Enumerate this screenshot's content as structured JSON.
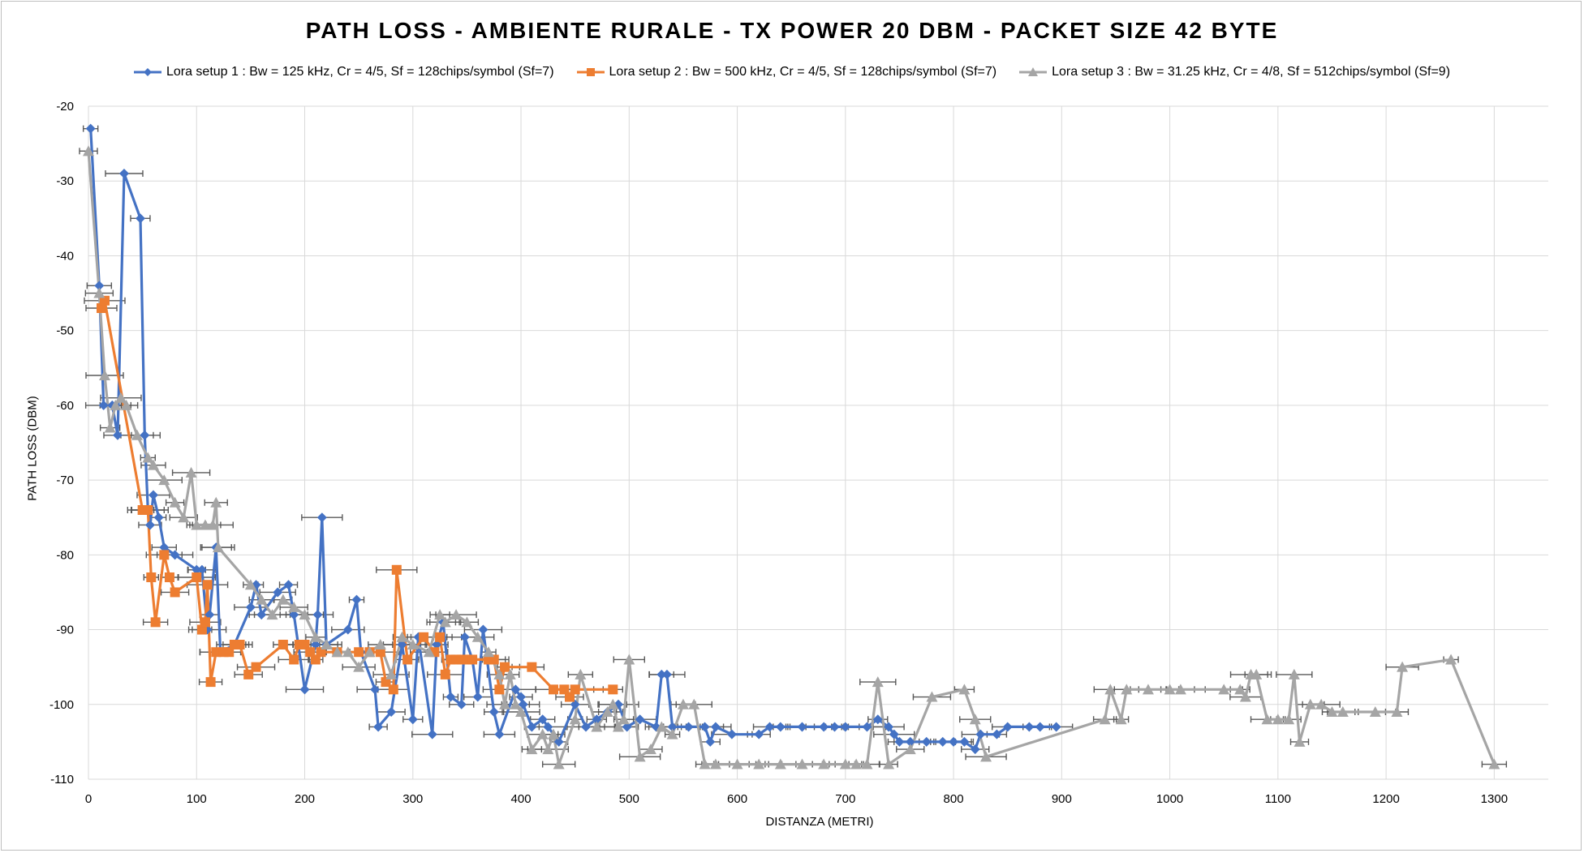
{
  "chart_data": {
    "type": "line",
    "title": "PATH LOSS - AMBIENTE RURALE - TX POWER 20 DBM - PACKET SIZE 42 BYTE",
    "xlabel": "DISTANZA (METRI)",
    "ylabel": "PATH LOSS (DBM)",
    "xlim": [
      0,
      1350
    ],
    "ylim": [
      -110,
      -20
    ],
    "x_ticks": [
      0,
      100,
      200,
      300,
      400,
      500,
      600,
      700,
      800,
      900,
      1000,
      1100,
      1200,
      1300
    ],
    "y_ticks": [
      -20,
      -30,
      -40,
      -50,
      -60,
      -70,
      -80,
      -90,
      -100,
      -110
    ],
    "grid": true,
    "legend_position": "top",
    "error_bars": "horizontal",
    "series": [
      {
        "name": "Lora setup 1 : Bw = 125 kHz, Cr = 4/5, Sf = 128chips/symbol (Sf=7)",
        "color": "#4472C4",
        "marker": "diamond",
        "points": [
          [
            2,
            -23
          ],
          [
            10,
            -44
          ],
          [
            14,
            -60
          ],
          [
            22,
            -60
          ],
          [
            27,
            -64
          ],
          [
            33,
            -29
          ],
          [
            48,
            -35
          ],
          [
            52,
            -64
          ],
          [
            55,
            -74
          ],
          [
            57,
            -76
          ],
          [
            60,
            -72
          ],
          [
            65,
            -75
          ],
          [
            70,
            -79
          ],
          [
            80,
            -80
          ],
          [
            100,
            -82
          ],
          [
            105,
            -82
          ],
          [
            110,
            -90
          ],
          [
            112,
            -88
          ],
          [
            118,
            -79
          ],
          [
            122,
            -93
          ],
          [
            135,
            -92
          ],
          [
            150,
            -87
          ],
          [
            155,
            -84
          ],
          [
            160,
            -88
          ],
          [
            175,
            -85
          ],
          [
            185,
            -84
          ],
          [
            190,
            -88
          ],
          [
            200,
            -98
          ],
          [
            210,
            -92
          ],
          [
            212,
            -88
          ],
          [
            216,
            -75
          ],
          [
            220,
            -92
          ],
          [
            240,
            -90
          ],
          [
            248,
            -86
          ],
          [
            252,
            -93
          ],
          [
            265,
            -98
          ],
          [
            268,
            -103
          ],
          [
            280,
            -101
          ],
          [
            290,
            -92
          ],
          [
            300,
            -102
          ],
          [
            305,
            -91
          ],
          [
            318,
            -104
          ],
          [
            322,
            -92
          ],
          [
            328,
            -89
          ],
          [
            335,
            -99
          ],
          [
            345,
            -100
          ],
          [
            348,
            -91
          ],
          [
            355,
            -94
          ],
          [
            360,
            -99
          ],
          [
            365,
            -90
          ],
          [
            375,
            -101
          ],
          [
            380,
            -104
          ],
          [
            395,
            -98
          ],
          [
            400,
            -99
          ],
          [
            402,
            -100
          ],
          [
            410,
            -103
          ],
          [
            420,
            -102
          ],
          [
            425,
            -103
          ],
          [
            435,
            -105
          ],
          [
            450,
            -100
          ],
          [
            460,
            -103
          ],
          [
            470,
            -102
          ],
          [
            480,
            -101
          ],
          [
            490,
            -100
          ],
          [
            498,
            -103
          ],
          [
            510,
            -102
          ],
          [
            525,
            -103
          ],
          [
            530,
            -96
          ],
          [
            535,
            -96
          ],
          [
            540,
            -103
          ],
          [
            555,
            -103
          ],
          [
            570,
            -103
          ],
          [
            575,
            -105
          ],
          [
            580,
            -103
          ],
          [
            595,
            -104
          ],
          [
            620,
            -104
          ],
          [
            630,
            -103
          ],
          [
            640,
            -103
          ],
          [
            660,
            -103
          ],
          [
            680,
            -103
          ],
          [
            690,
            -103
          ],
          [
            700,
            -103
          ],
          [
            720,
            -103
          ],
          [
            730,
            -102
          ],
          [
            740,
            -103
          ],
          [
            745,
            -104
          ],
          [
            750,
            -105
          ],
          [
            760,
            -105
          ],
          [
            775,
            -105
          ],
          [
            790,
            -105
          ],
          [
            800,
            -105
          ],
          [
            810,
            -105
          ],
          [
            820,
            -106
          ],
          [
            825,
            -104
          ],
          [
            840,
            -104
          ],
          [
            850,
            -103
          ],
          [
            870,
            -103
          ],
          [
            880,
            -103
          ],
          [
            895,
            -103
          ]
        ]
      },
      {
        "name": "Lora setup 2 : Bw = 500 kHz, Cr = 4/5, Sf = 128chips/symbol (Sf=7)",
        "color": "#ED7D31",
        "marker": "square",
        "points": [
          [
            12,
            -47
          ],
          [
            15,
            -46
          ],
          [
            50,
            -74
          ],
          [
            55,
            -74
          ],
          [
            58,
            -83
          ],
          [
            62,
            -89
          ],
          [
            70,
            -80
          ],
          [
            75,
            -83
          ],
          [
            80,
            -85
          ],
          [
            100,
            -83
          ],
          [
            105,
            -90
          ],
          [
            108,
            -89
          ],
          [
            110,
            -84
          ],
          [
            113,
            -97
          ],
          [
            118,
            -93
          ],
          [
            125,
            -93
          ],
          [
            130,
            -93
          ],
          [
            135,
            -92
          ],
          [
            140,
            -92
          ],
          [
            148,
            -96
          ],
          [
            155,
            -95
          ],
          [
            180,
            -92
          ],
          [
            190,
            -94
          ],
          [
            195,
            -92
          ],
          [
            200,
            -92
          ],
          [
            205,
            -93
          ],
          [
            210,
            -94
          ],
          [
            215,
            -93
          ],
          [
            230,
            -93
          ],
          [
            250,
            -93
          ],
          [
            260,
            -93
          ],
          [
            270,
            -93
          ],
          [
            275,
            -97
          ],
          [
            282,
            -98
          ],
          [
            285,
            -82
          ],
          [
            295,
            -94
          ],
          [
            310,
            -91
          ],
          [
            320,
            -93
          ],
          [
            325,
            -91
          ],
          [
            330,
            -96
          ],
          [
            335,
            -94
          ],
          [
            340,
            -94
          ],
          [
            345,
            -94
          ],
          [
            350,
            -94
          ],
          [
            355,
            -94
          ],
          [
            370,
            -94
          ],
          [
            375,
            -94
          ],
          [
            380,
            -98
          ],
          [
            385,
            -95
          ],
          [
            410,
            -95
          ],
          [
            430,
            -98
          ],
          [
            440,
            -98
          ],
          [
            445,
            -99
          ],
          [
            450,
            -98
          ],
          [
            485,
            -98
          ]
        ]
      },
      {
        "name": "Lora setup 3 : Bw = 31.25 kHz, Cr = 4/8, Sf = 512chips/symbol (Sf=9)",
        "color": "#A5A5A5",
        "marker": "triangle",
        "points": [
          [
            0,
            -26
          ],
          [
            10,
            -45
          ],
          [
            15,
            -56
          ],
          [
            20,
            -63
          ],
          [
            25,
            -60
          ],
          [
            30,
            -59
          ],
          [
            35,
            -60
          ],
          [
            45,
            -64
          ],
          [
            55,
            -67
          ],
          [
            60,
            -68
          ],
          [
            70,
            -70
          ],
          [
            80,
            -73
          ],
          [
            88,
            -75
          ],
          [
            95,
            -69
          ],
          [
            100,
            -76
          ],
          [
            108,
            -76
          ],
          [
            115,
            -76
          ],
          [
            118,
            -73
          ],
          [
            120,
            -79
          ],
          [
            150,
            -84
          ],
          [
            160,
            -86
          ],
          [
            170,
            -88
          ],
          [
            180,
            -86
          ],
          [
            190,
            -87
          ],
          [
            200,
            -88
          ],
          [
            210,
            -91
          ],
          [
            220,
            -92
          ],
          [
            230,
            -93
          ],
          [
            240,
            -93
          ],
          [
            250,
            -95
          ],
          [
            260,
            -93
          ],
          [
            270,
            -92
          ],
          [
            280,
            -96
          ],
          [
            290,
            -91
          ],
          [
            300,
            -92
          ],
          [
            315,
            -93
          ],
          [
            325,
            -88
          ],
          [
            330,
            -89
          ],
          [
            340,
            -88
          ],
          [
            350,
            -89
          ],
          [
            360,
            -91
          ],
          [
            370,
            -93
          ],
          [
            380,
            -96
          ],
          [
            385,
            -100
          ],
          [
            390,
            -96
          ],
          [
            395,
            -100
          ],
          [
            400,
            -101
          ],
          [
            410,
            -106
          ],
          [
            420,
            -104
          ],
          [
            425,
            -106
          ],
          [
            430,
            -104
          ],
          [
            435,
            -108
          ],
          [
            450,
            -102
          ],
          [
            455,
            -96
          ],
          [
            470,
            -103
          ],
          [
            480,
            -101
          ],
          [
            485,
            -100
          ],
          [
            490,
            -103
          ],
          [
            495,
            -102
          ],
          [
            500,
            -94
          ],
          [
            510,
            -107
          ],
          [
            520,
            -106
          ],
          [
            530,
            -103
          ],
          [
            540,
            -104
          ],
          [
            550,
            -100
          ],
          [
            560,
            -100
          ],
          [
            570,
            -108
          ],
          [
            580,
            -108
          ],
          [
            600,
            -108
          ],
          [
            620,
            -108
          ],
          [
            640,
            -108
          ],
          [
            660,
            -108
          ],
          [
            680,
            -108
          ],
          [
            700,
            -108
          ],
          [
            710,
            -108
          ],
          [
            720,
            -108
          ],
          [
            730,
            -97
          ],
          [
            740,
            -108
          ],
          [
            760,
            -106
          ],
          [
            780,
            -99
          ],
          [
            810,
            -98
          ],
          [
            820,
            -102
          ],
          [
            830,
            -107
          ],
          [
            940,
            -102
          ],
          [
            945,
            -98
          ],
          [
            955,
            -102
          ],
          [
            960,
            -98
          ],
          [
            980,
            -98
          ],
          [
            1000,
            -98
          ],
          [
            1010,
            -98
          ],
          [
            1050,
            -98
          ],
          [
            1065,
            -98
          ],
          [
            1070,
            -99
          ],
          [
            1075,
            -96
          ],
          [
            1080,
            -96
          ],
          [
            1090,
            -102
          ],
          [
            1100,
            -102
          ],
          [
            1110,
            -102
          ],
          [
            1115,
            -96
          ],
          [
            1120,
            -105
          ],
          [
            1130,
            -100
          ],
          [
            1140,
            -100
          ],
          [
            1150,
            -101
          ],
          [
            1160,
            -101
          ],
          [
            1190,
            -101
          ],
          [
            1210,
            -101
          ],
          [
            1215,
            -95
          ],
          [
            1260,
            -94
          ],
          [
            1300,
            -108
          ]
        ]
      }
    ]
  }
}
